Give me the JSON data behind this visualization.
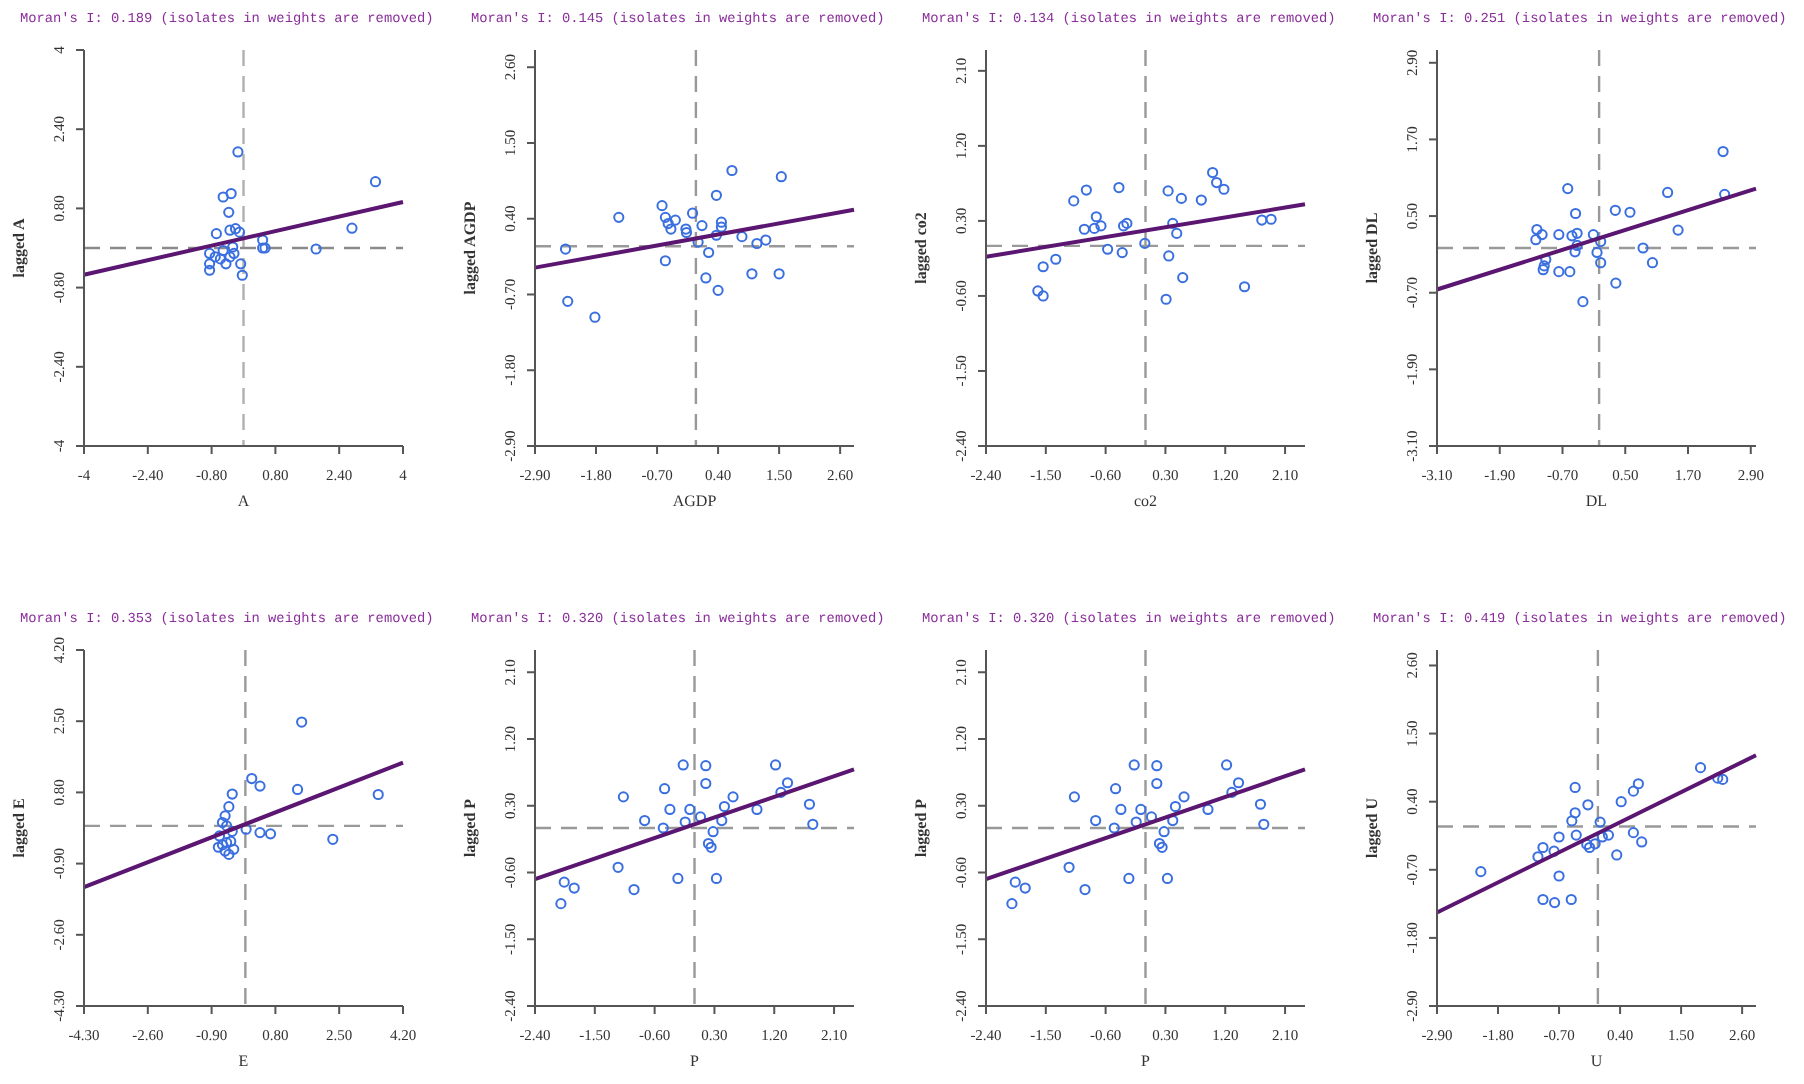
{
  "chart_data": [
    {
      "type": "scatter",
      "title": "Moran's I: 0.189 (isolates in weights are removed)",
      "xlabel": "A",
      "ylabel": "lagged A",
      "xlim": [
        -4,
        4
      ],
      "ylim": [
        -4,
        4
      ],
      "ref_lines": [
        {
          "axis": "x",
          "value": 0,
          "color": "#b0b0b0",
          "line_style": "dashed"
        },
        {
          "axis": "y",
          "value": 0,
          "color": "#8a8a8a",
          "line_style": "dashed"
        }
      ],
      "xticks": [
        -4,
        {
          "value": -2.4,
          "label": "-2.40"
        },
        {
          "value": -0.8,
          "label": "-0.80"
        },
        {
          "value": 0.8,
          "label": "0.80"
        },
        {
          "value": 2.4,
          "label": "2.40"
        },
        4
      ],
      "yticks": [
        -4,
        {
          "value": -2.4,
          "label": "-2.40"
        },
        {
          "value": -0.8,
          "label": "-0.80"
        },
        {
          "value": 0.8,
          "label": "0.80"
        },
        {
          "value": 2.4,
          "label": "2.40"
        },
        4
      ],
      "series": [
        {
          "type": "scatter",
          "marker": "circle",
          "color": "#3a6fe0",
          "x": [
            -0.14,
            3.31,
            -0.51,
            -0.31,
            -0.37,
            -0.34,
            -0.2,
            -0.68,
            -0.1,
            2.72,
            0.48,
            0.54,
            0.48,
            1.82,
            -0.51,
            -0.85,
            -0.71,
            -0.58,
            -0.44,
            -0.24,
            -0.85,
            -0.85,
            -0.07,
            -0.03,
            -0.27,
            -0.34
          ],
          "values": [
            1.94,
            1.34,
            1.03,
            1.1,
            0.72,
            0.36,
            0.39,
            0.29,
            0.32,
            0.4,
            0.16,
            0,
            0,
            -0.02,
            -0.05,
            -0.11,
            -0.18,
            -0.22,
            -0.32,
            -0.11,
            -0.32,
            -0.45,
            -0.32,
            -0.55,
            0.02,
            -0.18
          ]
        },
        {
          "type": "line",
          "color": "#5a1670",
          "line_style": "solid",
          "x": [
            -4,
            4
          ],
          "values": [
            -0.54,
            0.93
          ]
        }
      ]
    },
    {
      "type": "scatter",
      "title": "Moran's I: 0.145 (isolates in weights are removed)",
      "xlabel": "AGDP",
      "ylabel": "lagged AGDP",
      "xlim": [
        -2.9,
        2.85
      ],
      "ylim": [
        -2.9,
        2.85
      ],
      "xticks": [
        {
          "value": -2.9,
          "label": "-2.90"
        },
        {
          "value": -1.8,
          "label": "-1.80"
        },
        {
          "value": -0.7,
          "label": "-0.70"
        },
        {
          "value": 0.4,
          "label": "0.40"
        },
        {
          "value": 1.5,
          "label": "1.50"
        },
        {
          "value": 2.6,
          "label": "2.60"
        }
      ],
      "yticks": [
        {
          "value": -2.9,
          "label": "-2.90"
        },
        {
          "value": -1.8,
          "label": "-1.80"
        },
        {
          "value": -0.7,
          "label": "-0.70"
        },
        {
          "value": 0.4,
          "label": "0.40"
        },
        {
          "value": 1.5,
          "label": "1.50"
        },
        {
          "value": 2.6,
          "label": "2.60"
        }
      ],
      "ref_lines": [
        {
          "axis": "x",
          "value": 0,
          "color": "#999999",
          "line_style": "dashed"
        },
        {
          "axis": "y",
          "value": 0,
          "color": "#999999",
          "line_style": "dashed"
        }
      ],
      "series": [
        {
          "type": "scatter",
          "marker": "circle",
          "color": "#3a6fe0",
          "x": [
            -2.35,
            -2.31,
            -1.82,
            -1.39,
            -0.61,
            -0.55,
            -0.5,
            -0.45,
            -0.37,
            -0.55,
            -0.18,
            -0.17,
            -0.06,
            0.11,
            0.04,
            0.23,
            0.18,
            0.37,
            0.37,
            0.4,
            0.46,
            0.46,
            0.65,
            0.83,
            1.01,
            1.1,
            1.26,
            1.5,
            1.54
          ],
          "values": [
            -0.04,
            -0.8,
            -1.03,
            0.42,
            0.59,
            0.42,
            0.33,
            0.25,
            0.38,
            -0.21,
            0.25,
            0.2,
            0.48,
            0.3,
            0.06,
            -0.09,
            -0.46,
            0.74,
            0.16,
            -0.64,
            0.35,
            0.28,
            1.1,
            0.14,
            -0.4,
            0.04,
            0.09,
            -0.4,
            1.01
          ]
        },
        {
          "type": "line",
          "color": "#5a1670",
          "line_style": "solid",
          "x": [
            -2.9,
            2.85
          ],
          "values": [
            -0.31,
            0.53
          ]
        }
      ]
    },
    {
      "type": "scatter",
      "title": "Moran's I: 0.134 (isolates in weights are removed)",
      "xlabel": "co2",
      "ylabel": "lagged co2",
      "xlim": [
        -2.4,
        2.4
      ],
      "ylim": [
        -2.4,
        2.35
      ],
      "xticks": [
        {
          "value": -2.4,
          "label": "-2.40"
        },
        {
          "value": -1.5,
          "label": "-1.50"
        },
        {
          "value": -0.6,
          "label": "-0.60"
        },
        {
          "value": 0.3,
          "label": "0.30"
        },
        {
          "value": 1.2,
          "label": "1.20"
        },
        {
          "value": 2.1,
          "label": "2.10"
        }
      ],
      "yticks": [
        {
          "value": -2.4,
          "label": "-2.40"
        },
        {
          "value": -1.5,
          "label": "-1.50"
        },
        {
          "value": -0.6,
          "label": "-0.60"
        },
        {
          "value": 0.3,
          "label": "0.30"
        },
        {
          "value": 1.2,
          "label": "1.20"
        },
        {
          "value": 2.1,
          "label": "2.10"
        }
      ],
      "ref_lines": [
        {
          "axis": "x",
          "value": 0,
          "color": "#999999",
          "line_style": "dashed"
        },
        {
          "axis": "y",
          "value": 0,
          "color": "#999999",
          "line_style": "dashed"
        }
      ],
      "series": [
        {
          "type": "scatter",
          "marker": "circle",
          "color": "#3a6fe0",
          "x": [
            -1.54,
            -1.62,
            -1.54,
            -1.35,
            -1.08,
            -0.89,
            -0.92,
            -0.77,
            -0.74,
            -0.67,
            -0.57,
            -0.4,
            -0.35,
            -0.33,
            -0.28,
            -0.01,
            0.31,
            0.34,
            0.35,
            0.41,
            0.47,
            0.54,
            0.56,
            0.84,
            1.01,
            1.07,
            1.18,
            1.49,
            1.75,
            1.89
          ],
          "values": [
            -0.25,
            -0.54,
            -0.6,
            -0.16,
            0.54,
            0.67,
            0.2,
            0.21,
            0.35,
            0.24,
            -0.04,
            0.7,
            -0.08,
            0.24,
            0.27,
            0.03,
            -0.64,
            0.66,
            -0.12,
            0.27,
            0.15,
            0.57,
            -0.38,
            0.55,
            0.88,
            0.76,
            0.68,
            -0.49,
            0.31,
            0.32
          ]
        },
        {
          "type": "line",
          "color": "#5a1670",
          "line_style": "solid",
          "x": [
            -2.4,
            2.4
          ],
          "values": [
            -0.13,
            0.5
          ]
        }
      ]
    },
    {
      "type": "scatter",
      "title": "Moran's I: 0.251 (isolates in weights are removed)",
      "xlabel": "DL",
      "ylabel": "lagged DL",
      "xlim": [
        -3.1,
        3
      ],
      "ylim": [
        -3.1,
        3.1
      ],
      "xticks": [
        {
          "value": -3.1,
          "label": "-3.10"
        },
        {
          "value": -1.9,
          "label": "-1.90"
        },
        {
          "value": -0.7,
          "label": "-0.70"
        },
        {
          "value": 0.5,
          "label": "0.50"
        },
        {
          "value": 1.7,
          "label": "1.70"
        },
        {
          "value": 2.9,
          "label": "2.90"
        }
      ],
      "yticks": [
        {
          "value": -3.1,
          "label": "-3.10"
        },
        {
          "value": -1.9,
          "label": "-1.90"
        },
        {
          "value": -0.7,
          "label": "-0.70"
        },
        {
          "value": 0.5,
          "label": "0.50"
        },
        {
          "value": 1.7,
          "label": "1.70"
        },
        {
          "value": 2.9,
          "label": "2.90"
        }
      ],
      "ref_lines": [
        {
          "axis": "x",
          "value": 0,
          "color": "#999999",
          "line_style": "dashed"
        },
        {
          "axis": "y",
          "value": 0,
          "color": "#999999",
          "line_style": "dashed"
        }
      ],
      "series": [
        {
          "type": "scatter",
          "marker": "circle",
          "color": "#3a6fe0",
          "x": [
            -1.21,
            -1.19,
            -1.09,
            -1.02,
            -1.07,
            -1.05,
            -0.77,
            -0.77,
            -0.6,
            -0.56,
            -0.52,
            -0.45,
            -0.42,
            -0.46,
            -0.42,
            -0.31,
            -0.11,
            -0.04,
            0.03,
            0.03,
            0.31,
            0.32,
            0.59,
            0.84,
            1.02,
            1.31,
            1.51,
            2.37,
            2.4
          ],
          "values": [
            0.13,
            0.29,
            0.21,
            -0.18,
            -0.34,
            -0.28,
            0.21,
            -0.37,
            0.93,
            -0.37,
            0.19,
            0.54,
            0.23,
            -0.06,
            0.04,
            -0.84,
            0.21,
            -0.07,
            -0.23,
            0.1,
            0.59,
            -0.55,
            0.56,
            0,
            -0.23,
            0.87,
            0.28,
            1.51,
            0.84
          ]
        },
        {
          "type": "line",
          "color": "#5a1670",
          "line_style": "solid",
          "x": [
            -3.1,
            3
          ],
          "values": [
            -0.65,
            0.93
          ]
        }
      ]
    },
    {
      "type": "scatter",
      "title": "Moran's I: 0.353 (isolates in weights are removed)",
      "xlabel": "E",
      "ylabel": "lagged E",
      "xlim": [
        -4.3,
        4.2
      ],
      "ylim": [
        -4.3,
        4.2
      ],
      "xticks": [
        {
          "value": -4.3,
          "label": "-4.30"
        },
        {
          "value": -2.6,
          "label": "-2.60"
        },
        {
          "value": -0.9,
          "label": "-0.90"
        },
        {
          "value": 0.8,
          "label": "0.80"
        },
        {
          "value": 2.5,
          "label": "2.50"
        },
        {
          "value": 4.2,
          "label": "4.20"
        }
      ],
      "yticks": [
        {
          "value": -4.3,
          "label": "-4.30"
        },
        {
          "value": -2.6,
          "label": "-2.60"
        },
        {
          "value": -0.9,
          "label": "-0.90"
        },
        {
          "value": 0.8,
          "label": "0.80"
        },
        {
          "value": 2.5,
          "label": "2.50"
        },
        {
          "value": 4.2,
          "label": "4.20"
        }
      ],
      "ref_lines": [
        {
          "axis": "x",
          "value": 0,
          "color": "#999999",
          "line_style": "dashed"
        },
        {
          "axis": "y",
          "value": 0,
          "color": "#999999",
          "line_style": "dashed"
        }
      ],
      "series": [
        {
          "type": "scatter",
          "marker": "circle",
          "color": "#3a6fe0",
          "x": [
            1.5,
            -0.35,
            -0.44,
            0.17,
            0.39,
            1.39,
            3.54,
            -0.54,
            -0.61,
            -0.5,
            -0.35,
            0.02,
            0.39,
            0.67,
            2.33,
            -0.72,
            -0.61,
            -0.5,
            -0.39,
            -0.31,
            -0.54,
            -0.44,
            -0.69
          ],
          "values": [
            2.48,
            0.76,
            0.46,
            1.13,
            0.95,
            0.87,
            0.75,
            0.24,
            0.08,
            0,
            -0.13,
            -0.08,
            -0.16,
            -0.19,
            -0.32,
            -0.51,
            -0.45,
            -0.4,
            -0.37,
            -0.56,
            -0.6,
            -0.68,
            -0.24
          ]
        },
        {
          "type": "line",
          "color": "#5a1670",
          "line_style": "solid",
          "x": [
            -4.3,
            4.2
          ],
          "values": [
            -1.46,
            1.51
          ]
        }
      ]
    },
    {
      "type": "scatter",
      "title": "Moran's I: 0.320 (isolates in weights are removed)",
      "xlabel": "P",
      "ylabel": "lagged P",
      "xlim": [
        -2.4,
        2.4
      ],
      "ylim": [
        -2.4,
        2.4
      ],
      "xticks": [
        {
          "value": -2.4,
          "label": "-2.40"
        },
        {
          "value": -1.5,
          "label": "-1.50"
        },
        {
          "value": -0.6,
          "label": "-0.60"
        },
        {
          "value": 0.3,
          "label": "0.30"
        },
        {
          "value": 1.2,
          "label": "1.20"
        },
        {
          "value": 2.1,
          "label": "2.10"
        }
      ],
      "yticks": [
        {
          "value": -2.4,
          "label": "-2.40"
        },
        {
          "value": -1.5,
          "label": "-1.50"
        },
        {
          "value": -0.6,
          "label": "-0.60"
        },
        {
          "value": 0.3,
          "label": "0.30"
        },
        {
          "value": 1.2,
          "label": "1.20"
        },
        {
          "value": 2.1,
          "label": "2.10"
        }
      ],
      "ref_lines": [
        {
          "axis": "x",
          "value": 0,
          "color": "#999999",
          "line_style": "dashed"
        },
        {
          "axis": "y",
          "value": 0,
          "color": "#999999",
          "line_style": "dashed"
        }
      ],
      "series": [
        {
          "type": "scatter",
          "marker": "circle",
          "color": "#3a6fe0",
          "x": [
            -2.01,
            -1.96,
            -1.81,
            -1.15,
            -1.07,
            -0.91,
            -0.75,
            -0.47,
            -0.45,
            -0.37,
            -0.25,
            -0.17,
            -0.14,
            -0.07,
            0.09,
            0.17,
            0.17,
            0.21,
            0.25,
            0.28,
            0.33,
            0.41,
            0.45,
            0.58,
            0.94,
            1.22,
            1.3,
            1.4,
            1.73,
            1.78
          ],
          "values": [
            -1.02,
            -0.73,
            -0.81,
            -0.53,
            0.42,
            -0.83,
            0.1,
            0,
            0.53,
            0.25,
            -0.68,
            0.85,
            0.08,
            0.25,
            0.15,
            0.84,
            0.6,
            -0.21,
            -0.26,
            -0.05,
            -0.68,
            0.1,
            0.29,
            0.42,
            0.25,
            0.85,
            0.48,
            0.61,
            0.32,
            0.05
          ]
        },
        {
          "type": "line",
          "color": "#5a1670",
          "line_style": "solid",
          "x": [
            -2.4,
            2.4
          ],
          "values": [
            -0.69,
            0.79
          ]
        }
      ]
    },
    {
      "type": "scatter",
      "title": "Moran's I: 0.320 (isolates in weights are removed)",
      "xlabel": "P",
      "ylabel": "lagged P",
      "xlim": [
        -2.4,
        2.4
      ],
      "ylim": [
        -2.4,
        2.4
      ],
      "xticks": [
        {
          "value": -2.4,
          "label": "-2.40"
        },
        {
          "value": -1.5,
          "label": "-1.50"
        },
        {
          "value": -0.6,
          "label": "-0.60"
        },
        {
          "value": 0.3,
          "label": "0.30"
        },
        {
          "value": 1.2,
          "label": "1.20"
        },
        {
          "value": 2.1,
          "label": "2.10"
        }
      ],
      "yticks": [
        {
          "value": -2.4,
          "label": "-2.40"
        },
        {
          "value": -1.5,
          "label": "-1.50"
        },
        {
          "value": -0.6,
          "label": "-0.60"
        },
        {
          "value": 0.3,
          "label": "0.30"
        },
        {
          "value": 1.2,
          "label": "1.20"
        },
        {
          "value": 2.1,
          "label": "2.10"
        }
      ],
      "ref_lines": [
        {
          "axis": "x",
          "value": 0,
          "color": "#999999",
          "line_style": "dashed"
        },
        {
          "axis": "y",
          "value": 0,
          "color": "#999999",
          "line_style": "dashed"
        }
      ],
      "series": [
        {
          "type": "scatter",
          "marker": "circle",
          "color": "#3a6fe0",
          "x": [
            -2.01,
            -1.96,
            -1.81,
            -1.15,
            -1.07,
            -0.91,
            -0.75,
            -0.47,
            -0.45,
            -0.37,
            -0.25,
            -0.17,
            -0.14,
            -0.07,
            0.09,
            0.17,
            0.17,
            0.21,
            0.25,
            0.28,
            0.33,
            0.41,
            0.45,
            0.58,
            0.94,
            1.22,
            1.3,
            1.4,
            1.73,
            1.78
          ],
          "values": [
            -1.02,
            -0.73,
            -0.81,
            -0.53,
            0.42,
            -0.83,
            0.1,
            0,
            0.53,
            0.25,
            -0.68,
            0.85,
            0.08,
            0.25,
            0.15,
            0.84,
            0.6,
            -0.21,
            -0.26,
            -0.05,
            -0.68,
            0.1,
            0.29,
            0.42,
            0.25,
            0.85,
            0.48,
            0.61,
            0.32,
            0.05
          ]
        },
        {
          "type": "line",
          "color": "#5a1670",
          "line_style": "solid",
          "x": [
            -2.4,
            2.4
          ],
          "values": [
            -0.69,
            0.79
          ]
        }
      ]
    },
    {
      "type": "scatter",
      "title": "Moran's I: 0.419 (isolates in weights are removed)",
      "xlabel": "U",
      "ylabel": "lagged U",
      "xlim": [
        -2.9,
        2.85
      ],
      "ylim": [
        -2.9,
        2.85
      ],
      "xticks": [
        {
          "value": -2.9,
          "label": "-2.90"
        },
        {
          "value": -1.8,
          "label": "-1.80"
        },
        {
          "value": -0.7,
          "label": "-0.70"
        },
        {
          "value": 0.4,
          "label": "0.40"
        },
        {
          "value": 1.5,
          "label": "1.50"
        },
        {
          "value": 2.6,
          "label": "2.60"
        }
      ],
      "yticks": [
        {
          "value": -2.9,
          "label": "-2.90"
        },
        {
          "value": -1.8,
          "label": "-1.80"
        },
        {
          "value": -0.7,
          "label": "-0.70"
        },
        {
          "value": 0.4,
          "label": "0.40"
        },
        {
          "value": 1.5,
          "label": "1.50"
        },
        {
          "value": 2.6,
          "label": "2.60"
        }
      ],
      "ref_lines": [
        {
          "axis": "x",
          "value": 0,
          "color": "#999999",
          "line_style": "dashed"
        },
        {
          "axis": "y",
          "value": 0,
          "color": "#999999",
          "line_style": "dashed"
        }
      ],
      "series": [
        {
          "type": "scatter",
          "marker": "circle",
          "color": "#3a6fe0",
          "x": [
            -2.11,
            -1.08,
            -0.99,
            -0.99,
            -0.79,
            -0.78,
            -0.7,
            -0.7,
            -0.48,
            -0.47,
            -0.41,
            -0.41,
            -0.39,
            -0.2,
            -0.18,
            -0.15,
            -0.05,
            0.04,
            0.08,
            0.19,
            0.34,
            0.42,
            0.64,
            0.64,
            0.73,
            0.79,
            1.85,
            2.16,
            2.25
          ],
          "values": [
            -0.73,
            -0.49,
            -0.34,
            -1.18,
            -0.4,
            -1.23,
            -0.17,
            -0.8,
            -1.18,
            0.09,
            0.63,
            0.22,
            -0.14,
            -0.29,
            0.35,
            -0.34,
            -0.28,
            0.07,
            -0.17,
            -0.14,
            -0.46,
            0.4,
            -0.1,
            0.57,
            0.69,
            -0.25,
            0.95,
            0.78,
            0.76
          ]
        },
        {
          "type": "line",
          "color": "#5a1670",
          "line_style": "solid",
          "x": [
            -2.9,
            2.85
          ],
          "values": [
            -1.39,
            1.15
          ]
        }
      ]
    }
  ]
}
